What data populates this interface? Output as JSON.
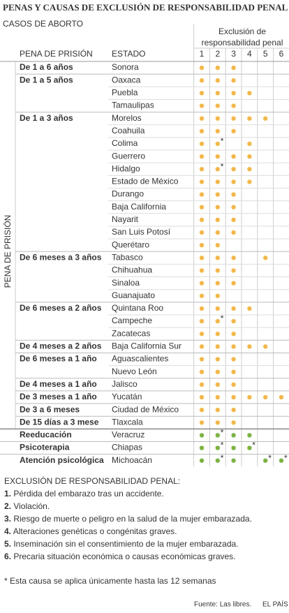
{
  "title": "PENAS Y CAUSAS DE EXCLUSIÓN DE RESPONSABILIDAD PENAL",
  "subtitle": "CASOS DE  ABORTO",
  "table": {
    "group_header": "Exclusión de responsabilidad penal",
    "columns": [
      "1",
      "2",
      "3",
      "4",
      "5",
      "6"
    ],
    "col_penalty": "PENA DE PRISIÓN",
    "col_state": "ESTADO",
    "side_label": "PENA DE PRISIÓN",
    "asterisk_mark": "*",
    "sections": [
      {
        "color": "#f2b84b",
        "rows": [
          {
            "penalty": "De 1 a 6 años",
            "state": "Sonora",
            "dots": [
              1,
              2,
              3
            ],
            "asterisk": []
          },
          {
            "penalty": "De 1 a 5 años",
            "state": "Oaxaca",
            "dots": [
              1,
              2,
              3
            ],
            "asterisk": []
          },
          {
            "penalty": null,
            "state": "Puebla",
            "dots": [
              1,
              2,
              3,
              4
            ],
            "asterisk": []
          },
          {
            "penalty": null,
            "state": "Tamaulipas",
            "dots": [
              1,
              2,
              3
            ],
            "asterisk": []
          },
          {
            "penalty": "De 1 a 3 años",
            "state": "Morelos",
            "dots": [
              1,
              2,
              3,
              4,
              5
            ],
            "asterisk": []
          },
          {
            "penalty": null,
            "state": "Coahuila",
            "dots": [
              1,
              2,
              3
            ],
            "asterisk": []
          },
          {
            "penalty": null,
            "state": "Colima",
            "dots": [
              1,
              2,
              4
            ],
            "asterisk": [
              2
            ]
          },
          {
            "penalty": null,
            "state": "Guerrero",
            "dots": [
              1,
              2,
              3,
              4
            ],
            "asterisk": []
          },
          {
            "penalty": null,
            "state": "Hidalgo",
            "dots": [
              1,
              2,
              3,
              4
            ],
            "asterisk": [
              2
            ]
          },
          {
            "penalty": null,
            "state": "Estado de México",
            "dots": [
              1,
              2,
              3,
              4
            ],
            "asterisk": []
          },
          {
            "penalty": null,
            "state": "Durango",
            "dots": [
              1,
              2,
              3
            ],
            "asterisk": []
          },
          {
            "penalty": null,
            "state": "Baja California",
            "dots": [
              1,
              2,
              3
            ],
            "asterisk": []
          },
          {
            "penalty": null,
            "state": "Nayarit",
            "dots": [
              1,
              2,
              3
            ],
            "asterisk": []
          },
          {
            "penalty": null,
            "state": "San Luis Potosí",
            "dots": [
              1,
              2,
              3
            ],
            "asterisk": []
          },
          {
            "penalty": null,
            "state": "Querétaro",
            "dots": [
              1,
              2
            ],
            "asterisk": []
          },
          {
            "penalty": "De 6 meses a 3 años",
            "state": "Tabasco",
            "dots": [
              1,
              2,
              3,
              5
            ],
            "asterisk": []
          },
          {
            "penalty": null,
            "state": "Chihuahua",
            "dots": [
              1,
              2,
              3
            ],
            "asterisk": []
          },
          {
            "penalty": null,
            "state": "Sinaloa",
            "dots": [
              1,
              2,
              3
            ],
            "asterisk": []
          },
          {
            "penalty": null,
            "state": "Guanajuato",
            "dots": [
              1,
              2
            ],
            "asterisk": []
          },
          {
            "penalty": "De 6 meses a 2 años",
            "state": "Quintana Roo",
            "dots": [
              1,
              2,
              3,
              4
            ],
            "asterisk": []
          },
          {
            "penalty": null,
            "state": "Campeche",
            "dots": [
              1,
              2,
              3
            ],
            "asterisk": [
              2
            ]
          },
          {
            "penalty": null,
            "state": "Zacatecas",
            "dots": [
              1,
              2,
              3
            ],
            "asterisk": []
          },
          {
            "penalty": "De 4 meses a 2 años",
            "state": "Baja California Sur",
            "dots": [
              1,
              2,
              3,
              4,
              5
            ],
            "asterisk": []
          },
          {
            "penalty": "De 6 meses a 1 año",
            "state": "Aguascalientes",
            "dots": [
              1,
              2,
              3
            ],
            "asterisk": []
          },
          {
            "penalty": null,
            "state": "Nuevo León",
            "dots": [
              1,
              2,
              3
            ],
            "asterisk": []
          },
          {
            "penalty": "De 4 meses a 1 año",
            "state": "Jalisco",
            "dots": [
              1,
              2,
              3
            ],
            "asterisk": []
          },
          {
            "penalty": "De 3 meses a 1 año",
            "state": "Yucatán",
            "dots": [
              1,
              2,
              3,
              4,
              5,
              6
            ],
            "asterisk": []
          },
          {
            "penalty": "De 3 a 6 meses",
            "state": "Ciudad de México",
            "dots": [
              1,
              2,
              3
            ],
            "asterisk": []
          },
          {
            "penalty": "De 15 días a 3 mese",
            "state": "Tlaxcala",
            "dots": [
              1,
              2,
              3
            ],
            "asterisk": []
          }
        ]
      },
      {
        "color": "#7cb342",
        "rows": [
          {
            "penalty": "Reeducación",
            "state": "Veracruz",
            "dots": [
              1,
              2,
              3,
              4
            ],
            "asterisk": [
              2
            ]
          },
          {
            "penalty": "Psicoterapia",
            "state": "Chiapas",
            "dots": [
              1,
              2,
              3,
              4
            ],
            "asterisk": [
              2,
              4
            ]
          },
          {
            "penalty": "Atención psicológica",
            "state": "Michoacán",
            "dots": [
              1,
              2,
              3,
              5,
              6
            ],
            "asterisk": [
              2,
              5,
              6
            ]
          }
        ]
      }
    ]
  },
  "legend": {
    "heading": "EXCLUSIÓN DE RESPONSABILIDAD PENAL:",
    "items": [
      {
        "number": "1.",
        "text": "Pérdida del embarazo tras un accidente."
      },
      {
        "number": "2.",
        "text": "Violación."
      },
      {
        "number": "3.",
        "text": "Riesgo de muerte o peligro en la salud de la mujer embarazada."
      },
      {
        "number": "4.",
        "text": "Alteraciones genéticas o congénitas graves."
      },
      {
        "number": "5.",
        "text": "Inseminación sin el consentimiento de la mujer embarazada."
      },
      {
        "number": "6.",
        "text": "Precaria situación económica o causas económicas graves."
      }
    ]
  },
  "footnote": "* Esta causa se aplica únicamente hasta las 12 semanas",
  "source": "Fuente: Las libres.",
  "brand": "EL PAÍS"
}
